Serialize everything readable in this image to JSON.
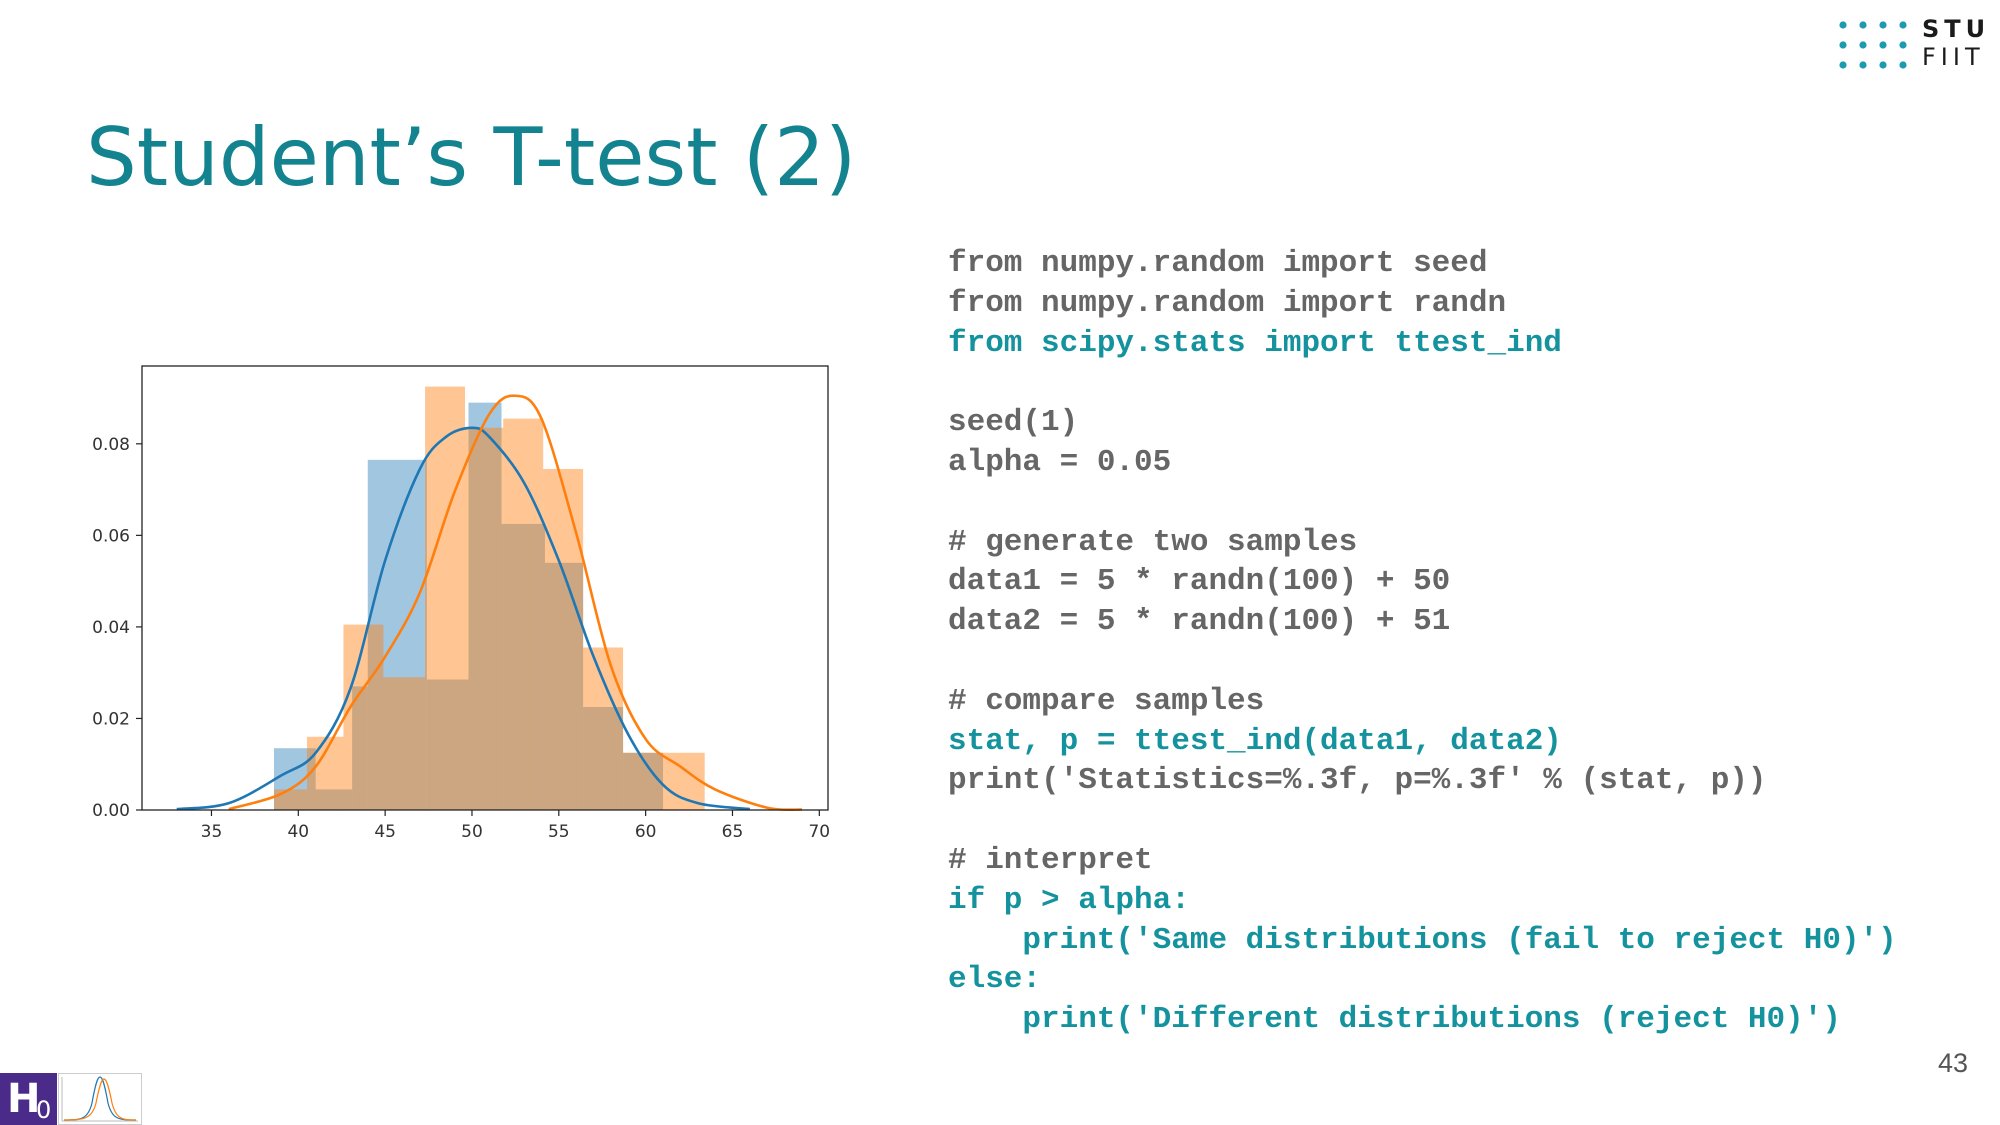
{
  "slide": {
    "title": "Student’s T-test (2)",
    "page_number": "43"
  },
  "logo": {
    "line1": "STU",
    "line2": "FIIT",
    "dot_color": "#1d9ab0"
  },
  "badge": {
    "main": "H",
    "subscript": "0",
    "color": "#4b2b8a",
    "thumbnail": "two-overlapping-bell-curves-icon"
  },
  "colors": {
    "title": "#12838f",
    "code_plain": "#666666",
    "code_accent": "#14939e",
    "series_blue": "#1f77b4",
    "series_orange": "#ff7f0e"
  },
  "code": {
    "lines": [
      {
        "text": "from numpy.random import seed",
        "style": "plain"
      },
      {
        "text": "from numpy.random import randn",
        "style": "plain"
      },
      {
        "text": "from scipy.stats import ttest_ind",
        "style": "accent"
      },
      {
        "text": "",
        "style": "plain"
      },
      {
        "text": "seed(1)",
        "style": "plain"
      },
      {
        "text": "alpha = 0.05",
        "style": "plain"
      },
      {
        "text": "",
        "style": "plain"
      },
      {
        "text": "# generate two samples",
        "style": "plain"
      },
      {
        "text": "data1 = 5 * randn(100) + 50",
        "style": "plain"
      },
      {
        "text": "data2 = 5 * randn(100) + 51",
        "style": "plain"
      },
      {
        "text": "",
        "style": "plain"
      },
      {
        "text": "# compare samples",
        "style": "plain"
      },
      {
        "text": "stat, p = ttest_ind(data1, data2)",
        "style": "accent"
      },
      {
        "text": "print('Statistics=%.3f, p=%.3f' % (stat, p))",
        "style": "plain"
      },
      {
        "text": "",
        "style": "plain"
      },
      {
        "text": "# interpret",
        "style": "plain"
      },
      {
        "text": "if p > alpha:",
        "style": "accent"
      },
      {
        "text": "    print('Same distributions (fail to reject H0)')",
        "style": "accent"
      },
      {
        "text": "else:",
        "style": "accent"
      },
      {
        "text": "    print('Different distributions (reject H0)')",
        "style": "accent"
      }
    ]
  },
  "chart_data": {
    "type": "histogram",
    "title": "",
    "xlabel": "",
    "ylabel": "",
    "xlim": [
      31,
      70.5
    ],
    "ylim": [
      0,
      0.097
    ],
    "xticks": [
      35,
      40,
      45,
      50,
      55,
      60,
      65,
      70
    ],
    "yticks": [
      0.0,
      0.02,
      0.04,
      0.06,
      0.08
    ],
    "ytick_labels": [
      "0.00",
      "0.02",
      "0.04",
      "0.06",
      "0.08"
    ],
    "grid": false,
    "legend": "none",
    "series": [
      {
        "color": "#1f77b4",
        "bins": [
          {
            "x0": 38.6,
            "x1": 41.0,
            "density": 0.0135
          },
          {
            "x0": 41.0,
            "x1": 43.1,
            "density": 0.0045
          },
          {
            "x0": 43.1,
            "x1": 44.0,
            "density": 0.027
          },
          {
            "x0": 44.0,
            "x1": 47.4,
            "density": 0.0765
          },
          {
            "x0": 47.4,
            "x1": 49.8,
            "density": 0.0285
          },
          {
            "x0": 49.8,
            "x1": 51.7,
            "density": 0.089
          },
          {
            "x0": 51.7,
            "x1": 54.2,
            "density": 0.0625
          },
          {
            "x0": 54.2,
            "x1": 56.4,
            "density": 0.054
          },
          {
            "x0": 56.4,
            "x1": 58.7,
            "density": 0.0225
          },
          {
            "x0": 58.7,
            "x1": 61.0,
            "density": 0.0125
          }
        ],
        "kde": [
          [
            33,
            0.0002
          ],
          [
            36,
            0.0015
          ],
          [
            39,
            0.0075
          ],
          [
            41,
            0.0125
          ],
          [
            43,
            0.0265
          ],
          [
            45,
            0.0545
          ],
          [
            47,
            0.0745
          ],
          [
            48.5,
            0.0815
          ],
          [
            50,
            0.0835
          ],
          [
            51,
            0.0815
          ],
          [
            53,
            0.0715
          ],
          [
            55,
            0.0545
          ],
          [
            57,
            0.0335
          ],
          [
            59,
            0.0165
          ],
          [
            61,
            0.0055
          ],
          [
            63,
            0.0015
          ],
          [
            66,
            0.0002
          ]
        ]
      },
      {
        "color": "#ff7f0e",
        "bins": [
          {
            "x0": 38.6,
            "x1": 40.5,
            "density": 0.0045
          },
          {
            "x0": 40.5,
            "x1": 42.6,
            "density": 0.016
          },
          {
            "x0": 42.6,
            "x1": 44.9,
            "density": 0.0405
          },
          {
            "x0": 44.9,
            "x1": 47.3,
            "density": 0.029
          },
          {
            "x0": 47.3,
            "x1": 49.6,
            "density": 0.0925
          },
          {
            "x0": 49.6,
            "x1": 51.8,
            "density": 0.0835
          },
          {
            "x0": 51.8,
            "x1": 54.1,
            "density": 0.0855
          },
          {
            "x0": 54.1,
            "x1": 56.4,
            "density": 0.0745
          },
          {
            "x0": 56.4,
            "x1": 58.7,
            "density": 0.0355
          },
          {
            "x0": 58.7,
            "x1": 61.0,
            "density": 0.0125
          },
          {
            "x0": 61.0,
            "x1": 63.4,
            "density": 0.0125
          }
        ],
        "kde": [
          [
            36,
            0.0002
          ],
          [
            39,
            0.0035
          ],
          [
            41,
            0.0095
          ],
          [
            43,
            0.0225
          ],
          [
            45,
            0.0335
          ],
          [
            47,
            0.0475
          ],
          [
            49,
            0.0695
          ],
          [
            51,
            0.0865
          ],
          [
            52.5,
            0.0905
          ],
          [
            54,
            0.0855
          ],
          [
            56,
            0.0605
          ],
          [
            58,
            0.0315
          ],
          [
            60,
            0.0155
          ],
          [
            62,
            0.0095
          ],
          [
            64,
            0.0045
          ],
          [
            67,
            0.0005
          ],
          [
            69,
            0.0001
          ]
        ]
      }
    ]
  }
}
